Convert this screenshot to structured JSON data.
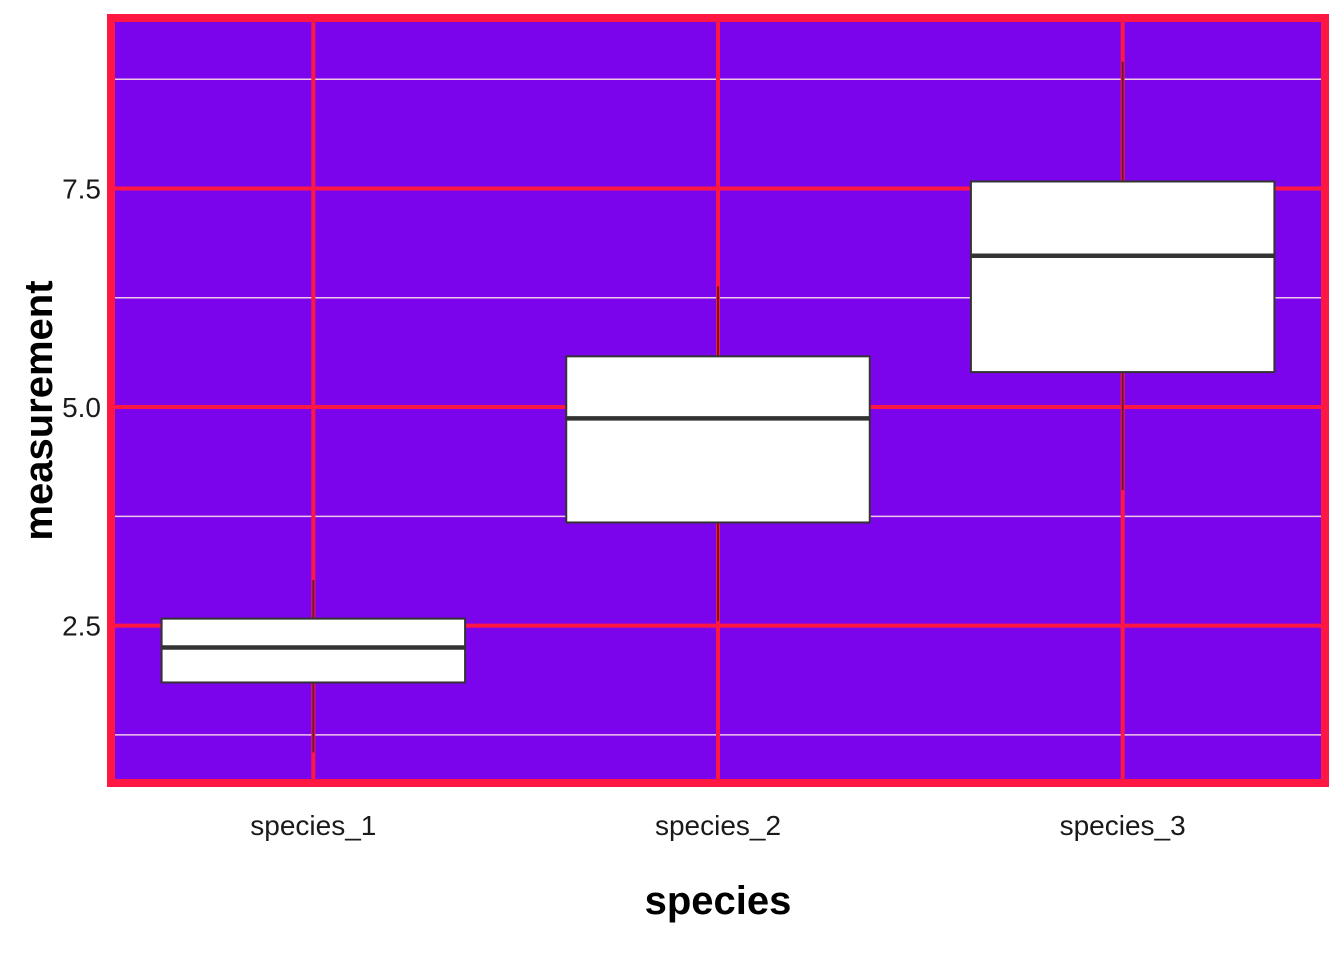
{
  "chart_data": {
    "type": "boxplot",
    "title": "",
    "xlabel": "species",
    "ylabel": "measurement",
    "categories": [
      "species_1",
      "species_2",
      "species_3"
    ],
    "boxes": [
      {
        "category": "species_1",
        "whisker_low": 1.05,
        "q1": 1.85,
        "median": 2.25,
        "q3": 2.58,
        "whisker_high": 3.02
      },
      {
        "category": "species_2",
        "whisker_low": 2.55,
        "q1": 3.68,
        "median": 4.87,
        "q3": 5.58,
        "whisker_high": 6.38
      },
      {
        "category": "species_3",
        "whisker_low": 4.05,
        "q1": 5.4,
        "median": 6.73,
        "q3": 7.58,
        "whisker_high": 8.95
      }
    ],
    "yticks": [
      2.5,
      5.0,
      7.5
    ],
    "ytick_labels": [
      "2.5",
      "5.0",
      "7.5"
    ],
    "yminor": [
      1.25,
      3.75,
      6.25,
      8.75
    ],
    "ylim": [
      0.7,
      9.45
    ],
    "grid": true,
    "legend": "none",
    "colors": {
      "panel_background": "#7C04EC",
      "panel_border": "#FF1744",
      "major_grid": "#FF1744",
      "minor_grid": "#F0C8E6",
      "box_fill": "#FFFFFF",
      "box_outline": "#333333",
      "whisker": "#6B1A2A"
    }
  }
}
